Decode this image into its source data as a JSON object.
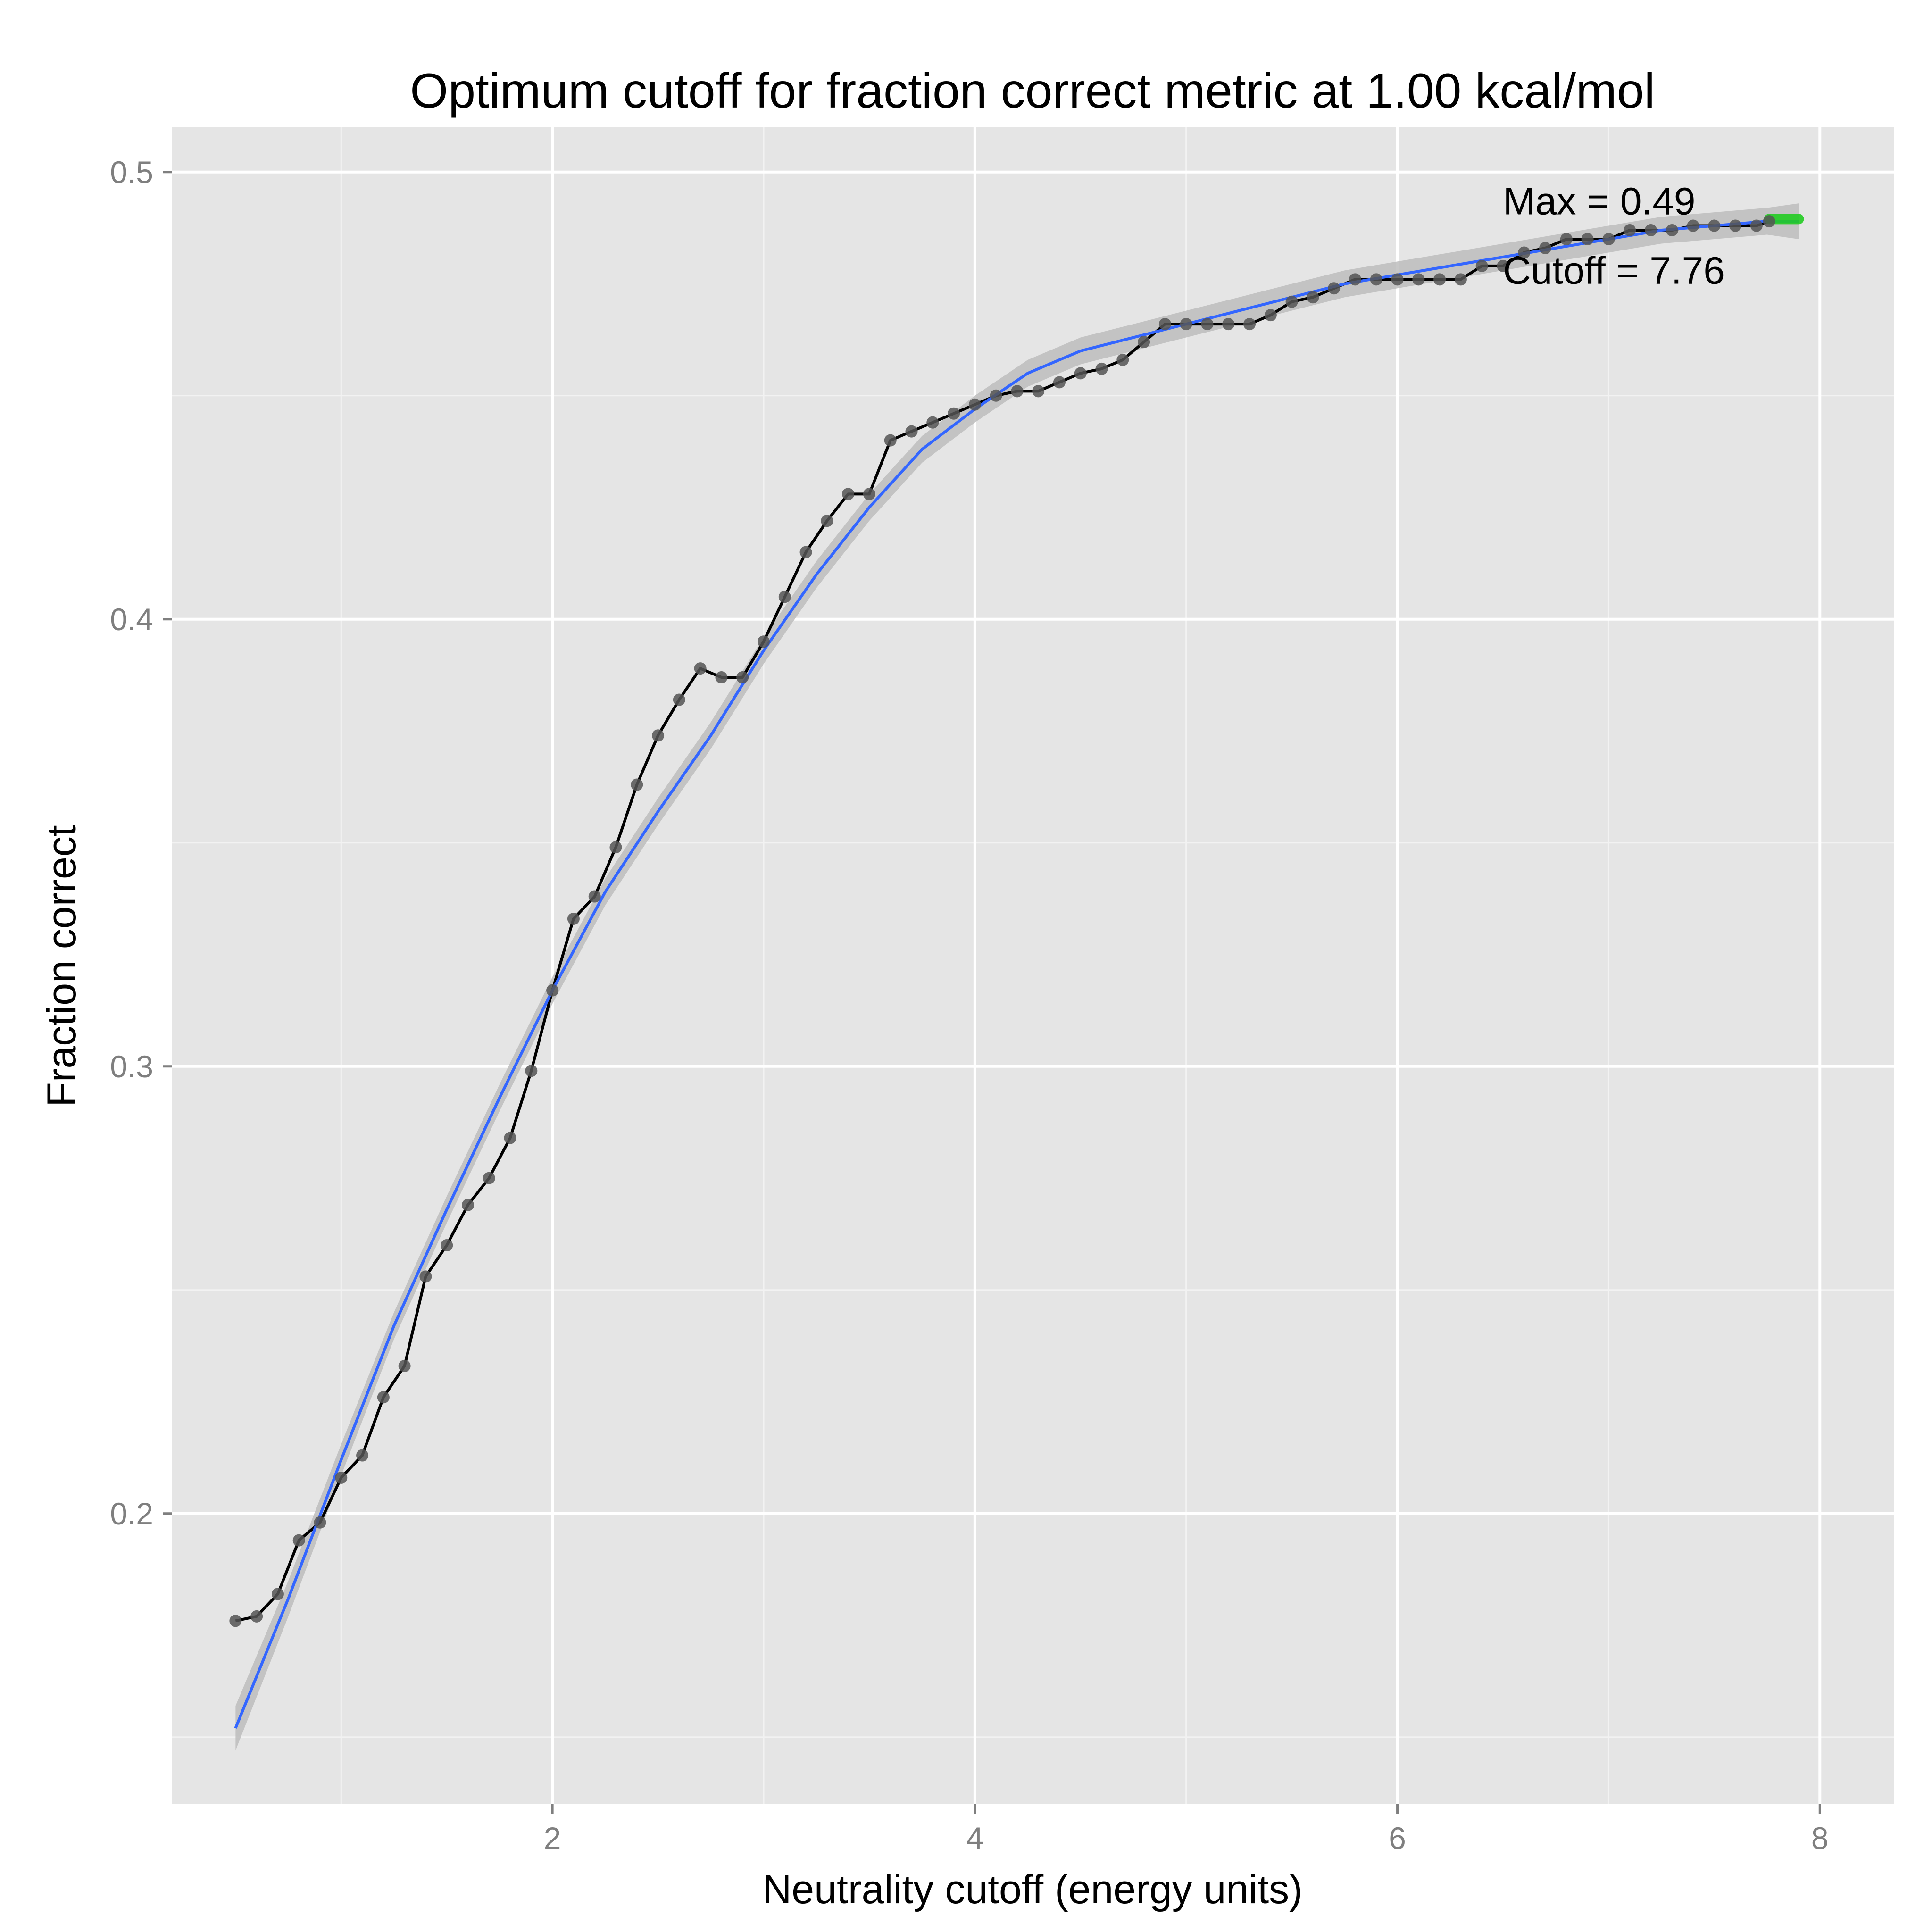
{
  "chart_data": {
    "type": "line",
    "title": "Optimum cutoff for fraction correct metric at 1.00 kcal/mol",
    "xlabel": "Neutrality cutoff (energy units)",
    "ylabel": "Fraction correct",
    "xlim": [
      0.2,
      8.35
    ],
    "ylim": [
      0.135,
      0.51
    ],
    "x_ticks": [
      2,
      4,
      6,
      8
    ],
    "x_tick_labels": [
      "2",
      "4",
      "6",
      "8"
    ],
    "y_ticks": [
      0.2,
      0.3,
      0.4,
      0.5
    ],
    "y_tick_labels": [
      "0.2",
      "0.3",
      "0.4",
      "0.5"
    ],
    "grid": true,
    "background": "#e5e5e5",
    "series": [
      {
        "kind": "observed",
        "color": "#000000",
        "point_color": "#555555",
        "points": [
          [
            0.5,
            0.176
          ],
          [
            0.6,
            0.177
          ],
          [
            0.7,
            0.182
          ],
          [
            0.8,
            0.194
          ],
          [
            0.9,
            0.198
          ],
          [
            1.0,
            0.208
          ],
          [
            1.1,
            0.213
          ],
          [
            1.2,
            0.226
          ],
          [
            1.3,
            0.233
          ],
          [
            1.4,
            0.253
          ],
          [
            1.5,
            0.26
          ],
          [
            1.6,
            0.269
          ],
          [
            1.7,
            0.275
          ],
          [
            1.8,
            0.284
          ],
          [
            1.9,
            0.299
          ],
          [
            2.0,
            0.317
          ],
          [
            2.1,
            0.333
          ],
          [
            2.2,
            0.338
          ],
          [
            2.3,
            0.349
          ],
          [
            2.4,
            0.363
          ],
          [
            2.5,
            0.374
          ],
          [
            2.6,
            0.382
          ],
          [
            2.7,
            0.389
          ],
          [
            2.8,
            0.387
          ],
          [
            2.9,
            0.387
          ],
          [
            3.0,
            0.395
          ],
          [
            3.1,
            0.405
          ],
          [
            3.2,
            0.415
          ],
          [
            3.3,
            0.422
          ],
          [
            3.4,
            0.428
          ],
          [
            3.5,
            0.428
          ],
          [
            3.6,
            0.44
          ],
          [
            3.7,
            0.442
          ],
          [
            3.8,
            0.444
          ],
          [
            3.9,
            0.446
          ],
          [
            4.0,
            0.448
          ],
          [
            4.1,
            0.45
          ],
          [
            4.2,
            0.451
          ],
          [
            4.3,
            0.451
          ],
          [
            4.4,
            0.453
          ],
          [
            4.5,
            0.455
          ],
          [
            4.6,
            0.456
          ],
          [
            4.7,
            0.458
          ],
          [
            4.8,
            0.462
          ],
          [
            4.9,
            0.466
          ],
          [
            5.0,
            0.466
          ],
          [
            5.1,
            0.466
          ],
          [
            5.2,
            0.466
          ],
          [
            5.3,
            0.466
          ],
          [
            5.4,
            0.468
          ],
          [
            5.5,
            0.471
          ],
          [
            5.6,
            0.472
          ],
          [
            5.7,
            0.474
          ],
          [
            5.8,
            0.476
          ],
          [
            5.9,
            0.476
          ],
          [
            6.0,
            0.476
          ],
          [
            6.1,
            0.476
          ],
          [
            6.2,
            0.476
          ],
          [
            6.3,
            0.476
          ],
          [
            6.4,
            0.479
          ],
          [
            6.5,
            0.479
          ],
          [
            6.6,
            0.482
          ],
          [
            6.7,
            0.483
          ],
          [
            6.8,
            0.485
          ],
          [
            6.9,
            0.485
          ],
          [
            7.0,
            0.485
          ],
          [
            7.1,
            0.487
          ],
          [
            7.2,
            0.487
          ],
          [
            7.3,
            0.487
          ],
          [
            7.4,
            0.488
          ],
          [
            7.5,
            0.488
          ],
          [
            7.6,
            0.488
          ],
          [
            7.7,
            0.488
          ],
          [
            7.76,
            0.489
          ]
        ]
      },
      {
        "kind": "smooth",
        "color": "#3366ff",
        "band_color": "#bdbdbd",
        "points": [
          [
            0.5,
            0.152
          ],
          [
            0.75,
            0.181
          ],
          [
            1.0,
            0.212
          ],
          [
            1.25,
            0.242
          ],
          [
            1.5,
            0.268
          ],
          [
            1.75,
            0.293
          ],
          [
            2.0,
            0.317
          ],
          [
            2.25,
            0.339
          ],
          [
            2.5,
            0.357
          ],
          [
            2.75,
            0.374
          ],
          [
            3.0,
            0.393
          ],
          [
            3.25,
            0.41
          ],
          [
            3.5,
            0.425
          ],
          [
            3.75,
            0.438
          ],
          [
            4.0,
            0.447
          ],
          [
            4.25,
            0.455
          ],
          [
            4.5,
            0.46
          ],
          [
            4.75,
            0.463
          ],
          [
            5.0,
            0.466
          ],
          [
            5.25,
            0.469
          ],
          [
            5.5,
            0.472
          ],
          [
            5.75,
            0.475
          ],
          [
            6.0,
            0.477
          ],
          [
            6.25,
            0.479
          ],
          [
            6.5,
            0.481
          ],
          [
            6.75,
            0.483
          ],
          [
            7.0,
            0.485
          ],
          [
            7.25,
            0.487
          ],
          [
            7.5,
            0.488
          ],
          [
            7.75,
            0.489
          ],
          [
            7.9,
            0.489
          ]
        ],
        "band_halfwidth": [
          0.005,
          0.004,
          0.0035,
          0.003,
          0.003,
          0.003,
          0.003,
          0.003,
          0.003,
          0.003,
          0.003,
          0.003,
          0.003,
          0.003,
          0.003,
          0.003,
          0.003,
          0.003,
          0.003,
          0.003,
          0.003,
          0.003,
          0.003,
          0.003,
          0.003,
          0.003,
          0.003,
          0.003,
          0.003,
          0.003,
          0.004
        ]
      },
      {
        "kind": "optimum",
        "color": "#22cc22",
        "points": [
          [
            7.76,
            0.4895
          ],
          [
            7.9,
            0.4895
          ]
        ]
      }
    ],
    "annotations": [
      {
        "text": "Max = 0.49",
        "x": 6.5,
        "y": 0.4935
      },
      {
        "text": "Cutoff = 7.76",
        "x": 6.5,
        "y": 0.478
      }
    ]
  }
}
